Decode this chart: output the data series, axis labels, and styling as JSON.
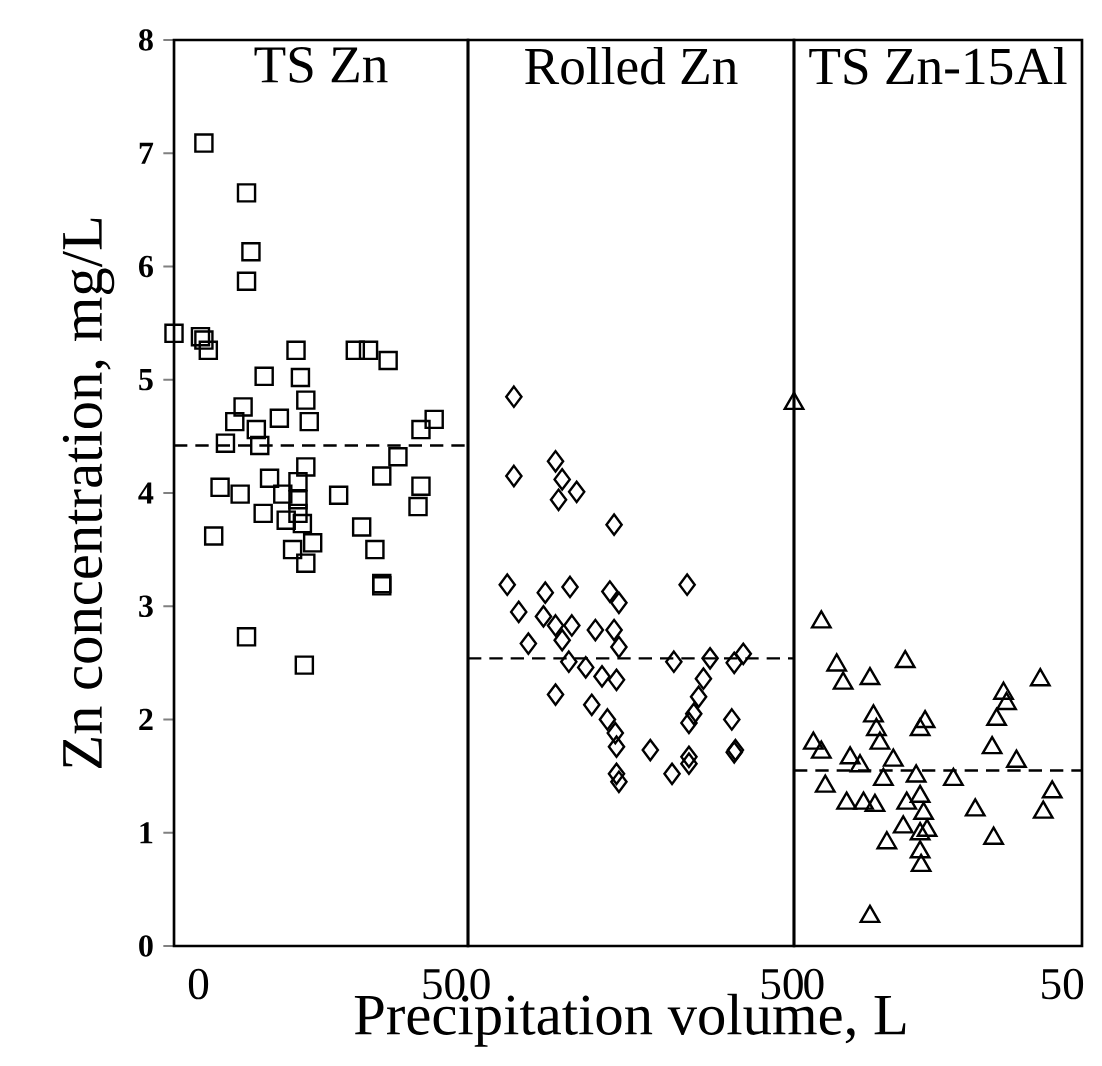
{
  "chart_data": [
    {
      "type": "scatter",
      "title": "TS Zn",
      "ylabel": "Zn concentration, mg/L",
      "marker": "square",
      "color": "#000000",
      "xlim": [
        -5,
        55
      ],
      "xticks": [
        0,
        50
      ],
      "ylim": [
        0,
        8
      ],
      "yticks": [
        0,
        1,
        2,
        3,
        4,
        5,
        6,
        7,
        8
      ],
      "ref_lines": [
        {
          "axis": "y",
          "value": 4.42,
          "line_style": "dashed"
        }
      ],
      "x": [
        -5,
        1.1,
        0.4,
        1.1,
        2.0,
        9.8,
        10.7,
        9.8,
        19.9,
        13.4,
        20.8,
        21.9,
        9.1,
        7.4,
        11.8,
        5.5,
        16.5,
        22.6,
        12.5,
        32.0,
        34.7,
        38.7,
        48.1,
        45.4,
        40.7,
        37.4,
        21.9,
        14.5,
        20.3,
        4.4,
        8.5,
        17.2,
        28.6,
        45.4,
        44.8,
        13.2,
        17.9,
        21.2,
        3.1,
        33.3,
        20.3,
        20.3,
        36.0,
        19.2,
        23.3,
        21.9,
        37.4,
        37.4,
        9.8,
        21.6
      ],
      "values": [
        5.41,
        7.09,
        5.38,
        5.35,
        5.26,
        6.65,
        6.13,
        5.87,
        5.26,
        5.03,
        5.02,
        4.82,
        4.76,
        4.63,
        4.56,
        4.44,
        4.66,
        4.63,
        4.42,
        5.26,
        5.26,
        5.17,
        4.65,
        4.56,
        4.32,
        4.15,
        4.23,
        4.13,
        4.1,
        4.05,
        3.99,
        3.99,
        3.98,
        4.06,
        3.88,
        3.82,
        3.76,
        3.73,
        3.62,
        3.7,
        3.82,
        3.94,
        3.5,
        3.5,
        3.56,
        3.38,
        3.2,
        3.18,
        2.73,
        2.48
      ]
    },
    {
      "type": "scatter",
      "title": "Rolled Zn",
      "xlabel": "Precipitation volume, L",
      "marker": "diamond",
      "color": "#000000",
      "xlim": [
        -2,
        52
      ],
      "xticks": [
        0,
        50
      ],
      "ylim": [
        0,
        8
      ],
      "tick_labels": "x",
      "ref_lines": [
        {
          "axis": "y",
          "value": 2.54,
          "line_style": "dashed"
        }
      ],
      "x": [
        5.6,
        5.6,
        12.5,
        13.6,
        16.0,
        13.0,
        22.2,
        4.5,
        34.3,
        10.8,
        14.9,
        21.5,
        23.0,
        6.4,
        10.5,
        12.5,
        15.2,
        19.1,
        22.2,
        8.0,
        13.6,
        23.0,
        14.7,
        17.5,
        20.2,
        22.6,
        32.1,
        38.1,
        42.1,
        43.6,
        37.0,
        12.5,
        36.2,
        18.5,
        21.1,
        35.4,
        34.6,
        41.7,
        22.4,
        28.2,
        42.3,
        34.6,
        22.6,
        23.0,
        31.8,
        34.6,
        42.1,
        22.6
      ],
      "values": [
        4.85,
        4.15,
        4.28,
        4.12,
        4.01,
        3.94,
        3.72,
        3.19,
        3.19,
        3.12,
        3.17,
        3.13,
        3.03,
        2.95,
        2.91,
        2.83,
        2.83,
        2.79,
        2.79,
        2.67,
        2.7,
        2.64,
        2.51,
        2.46,
        2.38,
        2.35,
        2.51,
        2.54,
        2.5,
        2.58,
        2.36,
        2.22,
        2.2,
        2.13,
        2.0,
        2.05,
        1.97,
        2.0,
        1.88,
        1.73,
        1.73,
        1.67,
        1.52,
        1.45,
        1.52,
        1.61,
        1.71,
        1.76
      ]
    },
    {
      "type": "scatter",
      "title": "TS Zn-15Al",
      "marker": "triangle",
      "color": "#000000",
      "xlim": [
        -4,
        54
      ],
      "xticks": [
        0,
        50
      ],
      "ylim": [
        0,
        8
      ],
      "tick_labels": "x",
      "ref_lines": [
        {
          "axis": "y",
          "value": 1.55,
          "line_style": "dashed"
        }
      ],
      "x": [
        -4,
        1.5,
        4.6,
        5.9,
        11.3,
        18.4,
        45.6,
        38.2,
        38.8,
        36.8,
        12.0,
        12.6,
        21.4,
        22.4,
        -0.1,
        1.5,
        7.3,
        13.3,
        16.0,
        35.9,
        40.8,
        28.1,
        2.3,
        9.3,
        14.0,
        20.6,
        48.0,
        46.2,
        6.6,
        10.0,
        12.3,
        18.7,
        21.4,
        22.1,
        18.0,
        21.4,
        22.8,
        32.5,
        36.2,
        14.7,
        21.4,
        21.6,
        11.3
      ],
      "values": [
        4.79,
        2.86,
        2.48,
        2.32,
        2.36,
        2.51,
        2.35,
        2.23,
        2.14,
        2.0,
        2.03,
        1.91,
        1.91,
        1.98,
        1.79,
        1.71,
        1.66,
        1.79,
        1.64,
        1.75,
        1.63,
        1.47,
        1.41,
        1.59,
        1.47,
        1.5,
        1.36,
        1.18,
        1.26,
        1.26,
        1.24,
        1.26,
        1.32,
        1.17,
        1.05,
        0.99,
        1.02,
        1.2,
        0.95,
        0.91,
        0.83,
        0.71,
        0.26
      ]
    }
  ]
}
